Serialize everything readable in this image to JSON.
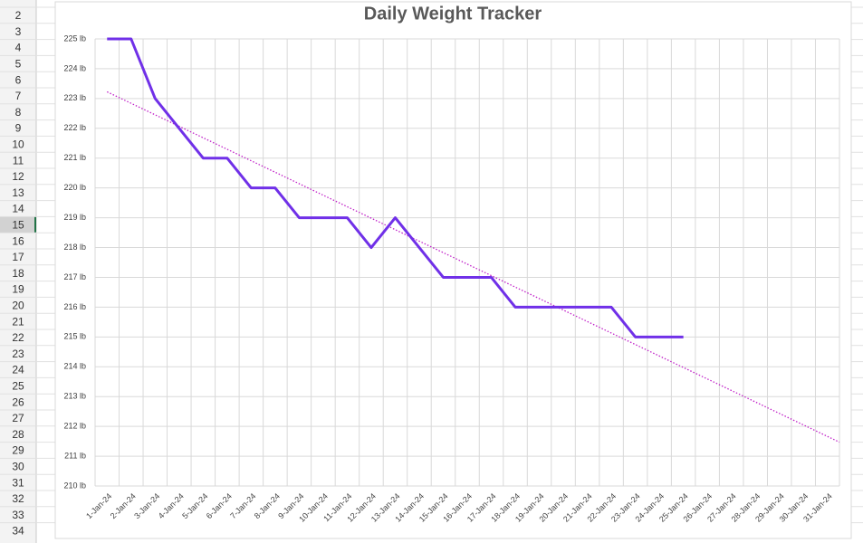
{
  "row_headers": [
    2,
    3,
    4,
    5,
    6,
    7,
    8,
    9,
    10,
    11,
    12,
    13,
    14,
    15,
    16,
    17,
    18,
    19,
    20,
    21,
    22,
    23,
    24,
    25,
    26,
    27,
    28,
    29,
    30,
    31,
    32,
    33,
    34
  ],
  "selected_row": 15,
  "chart_data": {
    "type": "line",
    "title": "Daily Weight Tracker",
    "categories": [
      "1-Jan-24",
      "2-Jan-24",
      "3-Jan-24",
      "4-Jan-24",
      "5-Jan-24",
      "6-Jan-24",
      "7-Jan-24",
      "8-Jan-24",
      "9-Jan-24",
      "10-Jan-24",
      "11-Jan-24",
      "12-Jan-24",
      "13-Jan-24",
      "14-Jan-24",
      "15-Jan-24",
      "16-Jan-24",
      "17-Jan-24",
      "18-Jan-24",
      "19-Jan-24",
      "20-Jan-24",
      "21-Jan-24",
      "22-Jan-24",
      "23-Jan-24",
      "24-Jan-24",
      "25-Jan-24",
      "26-Jan-24",
      "27-Jan-24",
      "28-Jan-24",
      "29-Jan-24",
      "30-Jan-24",
      "31-Jan-24"
    ],
    "values": [
      225,
      225,
      223,
      222,
      221,
      221,
      220,
      220,
      219,
      219,
      219,
      218,
      219,
      218,
      217,
      217,
      217,
      216,
      216,
      216,
      216,
      216,
      215,
      215,
      215,
      null,
      null,
      null,
      null,
      null,
      null
    ],
    "color": "#7030e8",
    "trendline": {
      "type": "linear",
      "color": "#c020c8"
    },
    "ylim": [
      210,
      225
    ],
    "yticks": [
      {
        "value": 210,
        "label": "210 lb"
      },
      {
        "value": 211,
        "label": "211 lb"
      },
      {
        "value": 212,
        "label": "212 lb"
      },
      {
        "value": 213,
        "label": "213 lb"
      },
      {
        "value": 214,
        "label": "214 lb"
      },
      {
        "value": 215,
        "label": "215 lb"
      },
      {
        "value": 216,
        "label": "216 lb"
      },
      {
        "value": 217,
        "label": "217 lb"
      },
      {
        "value": 218,
        "label": "218 lb"
      },
      {
        "value": 219,
        "label": "219 lb"
      },
      {
        "value": 220,
        "label": "220 lb"
      },
      {
        "value": 221,
        "label": "221 lb"
      },
      {
        "value": 222,
        "label": "222 lb"
      },
      {
        "value": 223,
        "label": "223 lb"
      },
      {
        "value": 224,
        "label": "224 lb"
      },
      {
        "value": 225,
        "label": "225 lb"
      }
    ],
    "grid": true
  }
}
